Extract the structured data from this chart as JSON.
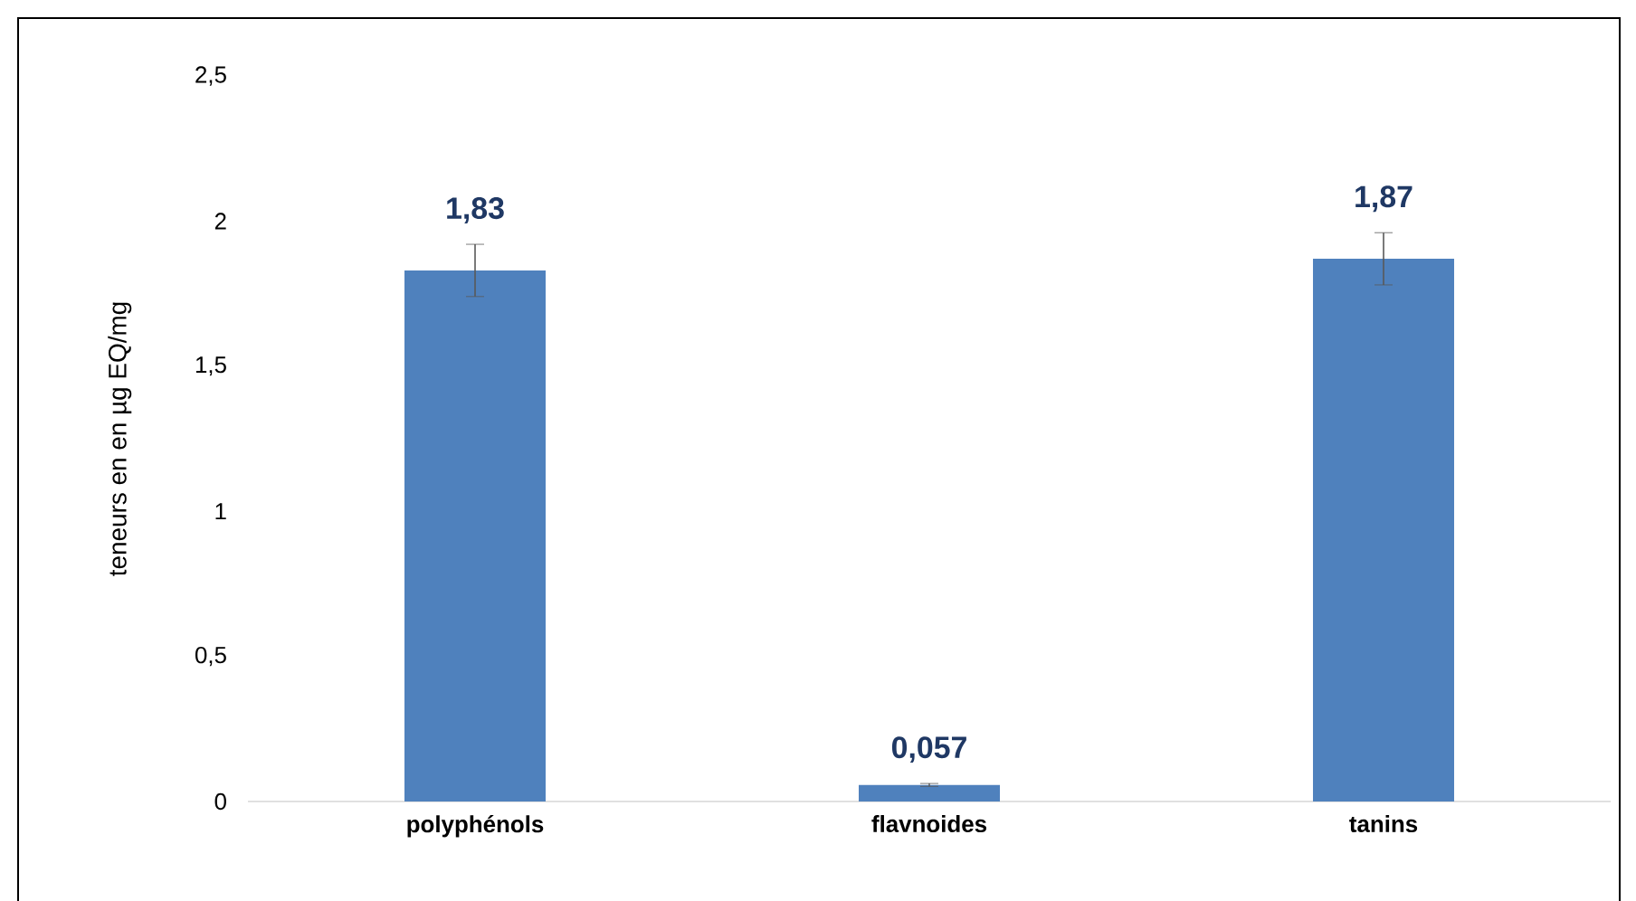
{
  "chart_data": {
    "type": "bar",
    "ylabel": "teneurs en en µg EQ/mg",
    "categories": [
      "polyphénols",
      "flavnoides",
      "tanins"
    ],
    "values": [
      1.83,
      0.057,
      1.87
    ],
    "errors": [
      0.09,
      0.005,
      0.09
    ],
    "value_labels": [
      "1,83",
      "0,057",
      "1,87"
    ],
    "color": "#4f81bd",
    "ylim": [
      0,
      2.5
    ],
    "yticks": [
      0,
      {
        "value": 0.5,
        "label": "0,5"
      },
      1,
      {
        "value": 1.5,
        "label": "1,5"
      },
      2,
      {
        "value": 2.5,
        "label": "2,5"
      }
    ],
    "grid": false
  }
}
